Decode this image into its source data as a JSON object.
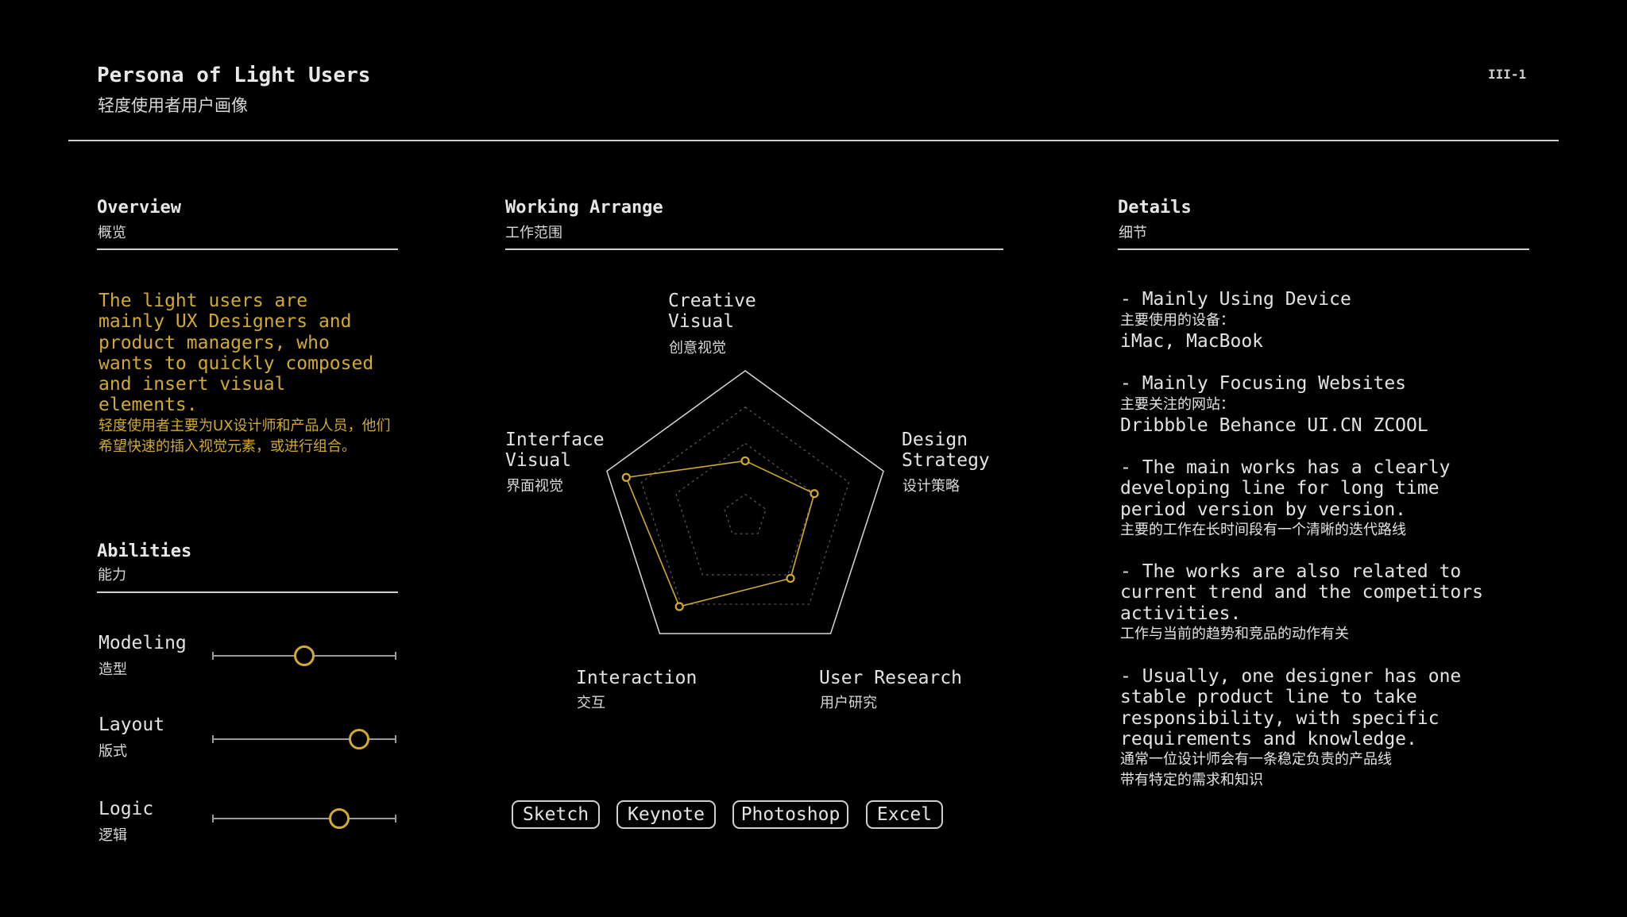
{
  "header": {
    "title": "Persona of Light Users",
    "subtitle": "轻度使用者用户画像",
    "page_number": "III-1"
  },
  "overview": {
    "heading": "Overview",
    "heading_cn": "概览",
    "text_en": "The light users are\nmainly UX Designers and\nproduct managers, who\nwants to quickly composed\nand insert visual\nelements.",
    "text_cn": "轻度使用者主要为UX设计师和产品人员，他们希望快速的插入视觉元素，或进行组合。",
    "accent_color": "#d2a931"
  },
  "abilities": {
    "heading": "Abilities",
    "heading_cn": "能力",
    "items": [
      {
        "name": "Modeling",
        "name_cn": "造型",
        "level": 0.5
      },
      {
        "name": "Layout",
        "name_cn": "版式",
        "level": 0.8
      },
      {
        "name": "Logic",
        "name_cn": "逻辑",
        "level": 0.69
      }
    ]
  },
  "working": {
    "heading": "Working Arrange",
    "heading_cn": "工作范围",
    "axes": [
      {
        "name": "Creative\nVisual",
        "name_cn": "创意视觉",
        "value": 0.38
      },
      {
        "name": "Design\nStrategy",
        "name_cn": "设计策略",
        "value": 0.5
      },
      {
        "name": "User Research",
        "name_cn": "用户研究",
        "value": 0.53
      },
      {
        "name": "Interaction",
        "name_cn": "交互",
        "value": 0.77
      },
      {
        "name": "Interface\nVisual",
        "name_cn": "界面视觉",
        "value": 0.86
      }
    ],
    "tools": [
      "Sketch",
      "Keynote",
      "Photoshop",
      "Excel"
    ]
  },
  "details": {
    "heading": "Details",
    "heading_cn": "细节",
    "items": [
      {
        "en": "- Mainly Using Device",
        "cn": "主要使用的设备：",
        "extra": "iMac, MacBook"
      },
      {
        "en": "- Mainly Focusing Websites",
        "cn": "主要关注的网站：",
        "extra": "Dribbble Behance UI.CN ZCOOL"
      },
      {
        "en": "- The main works has a clearly\ndeveloping line for long time\nperiod version by version.",
        "cn": "主要的工作在长时间段有一个清晰的迭代路线",
        "extra": ""
      },
      {
        "en": "- The works are also related to\ncurrent trend and the competitors\nactivities.",
        "cn": "工作与当前的趋势和竞品的动作有关",
        "extra": ""
      },
      {
        "en": "- Usually, one designer has one\nstable product line to take\nresponsibility, with specific\nrequirements and knowledge.",
        "cn": "通常一位设计师会有一条稳定负责的产品线\n带有特定的需求和知识",
        "extra": ""
      }
    ]
  }
}
